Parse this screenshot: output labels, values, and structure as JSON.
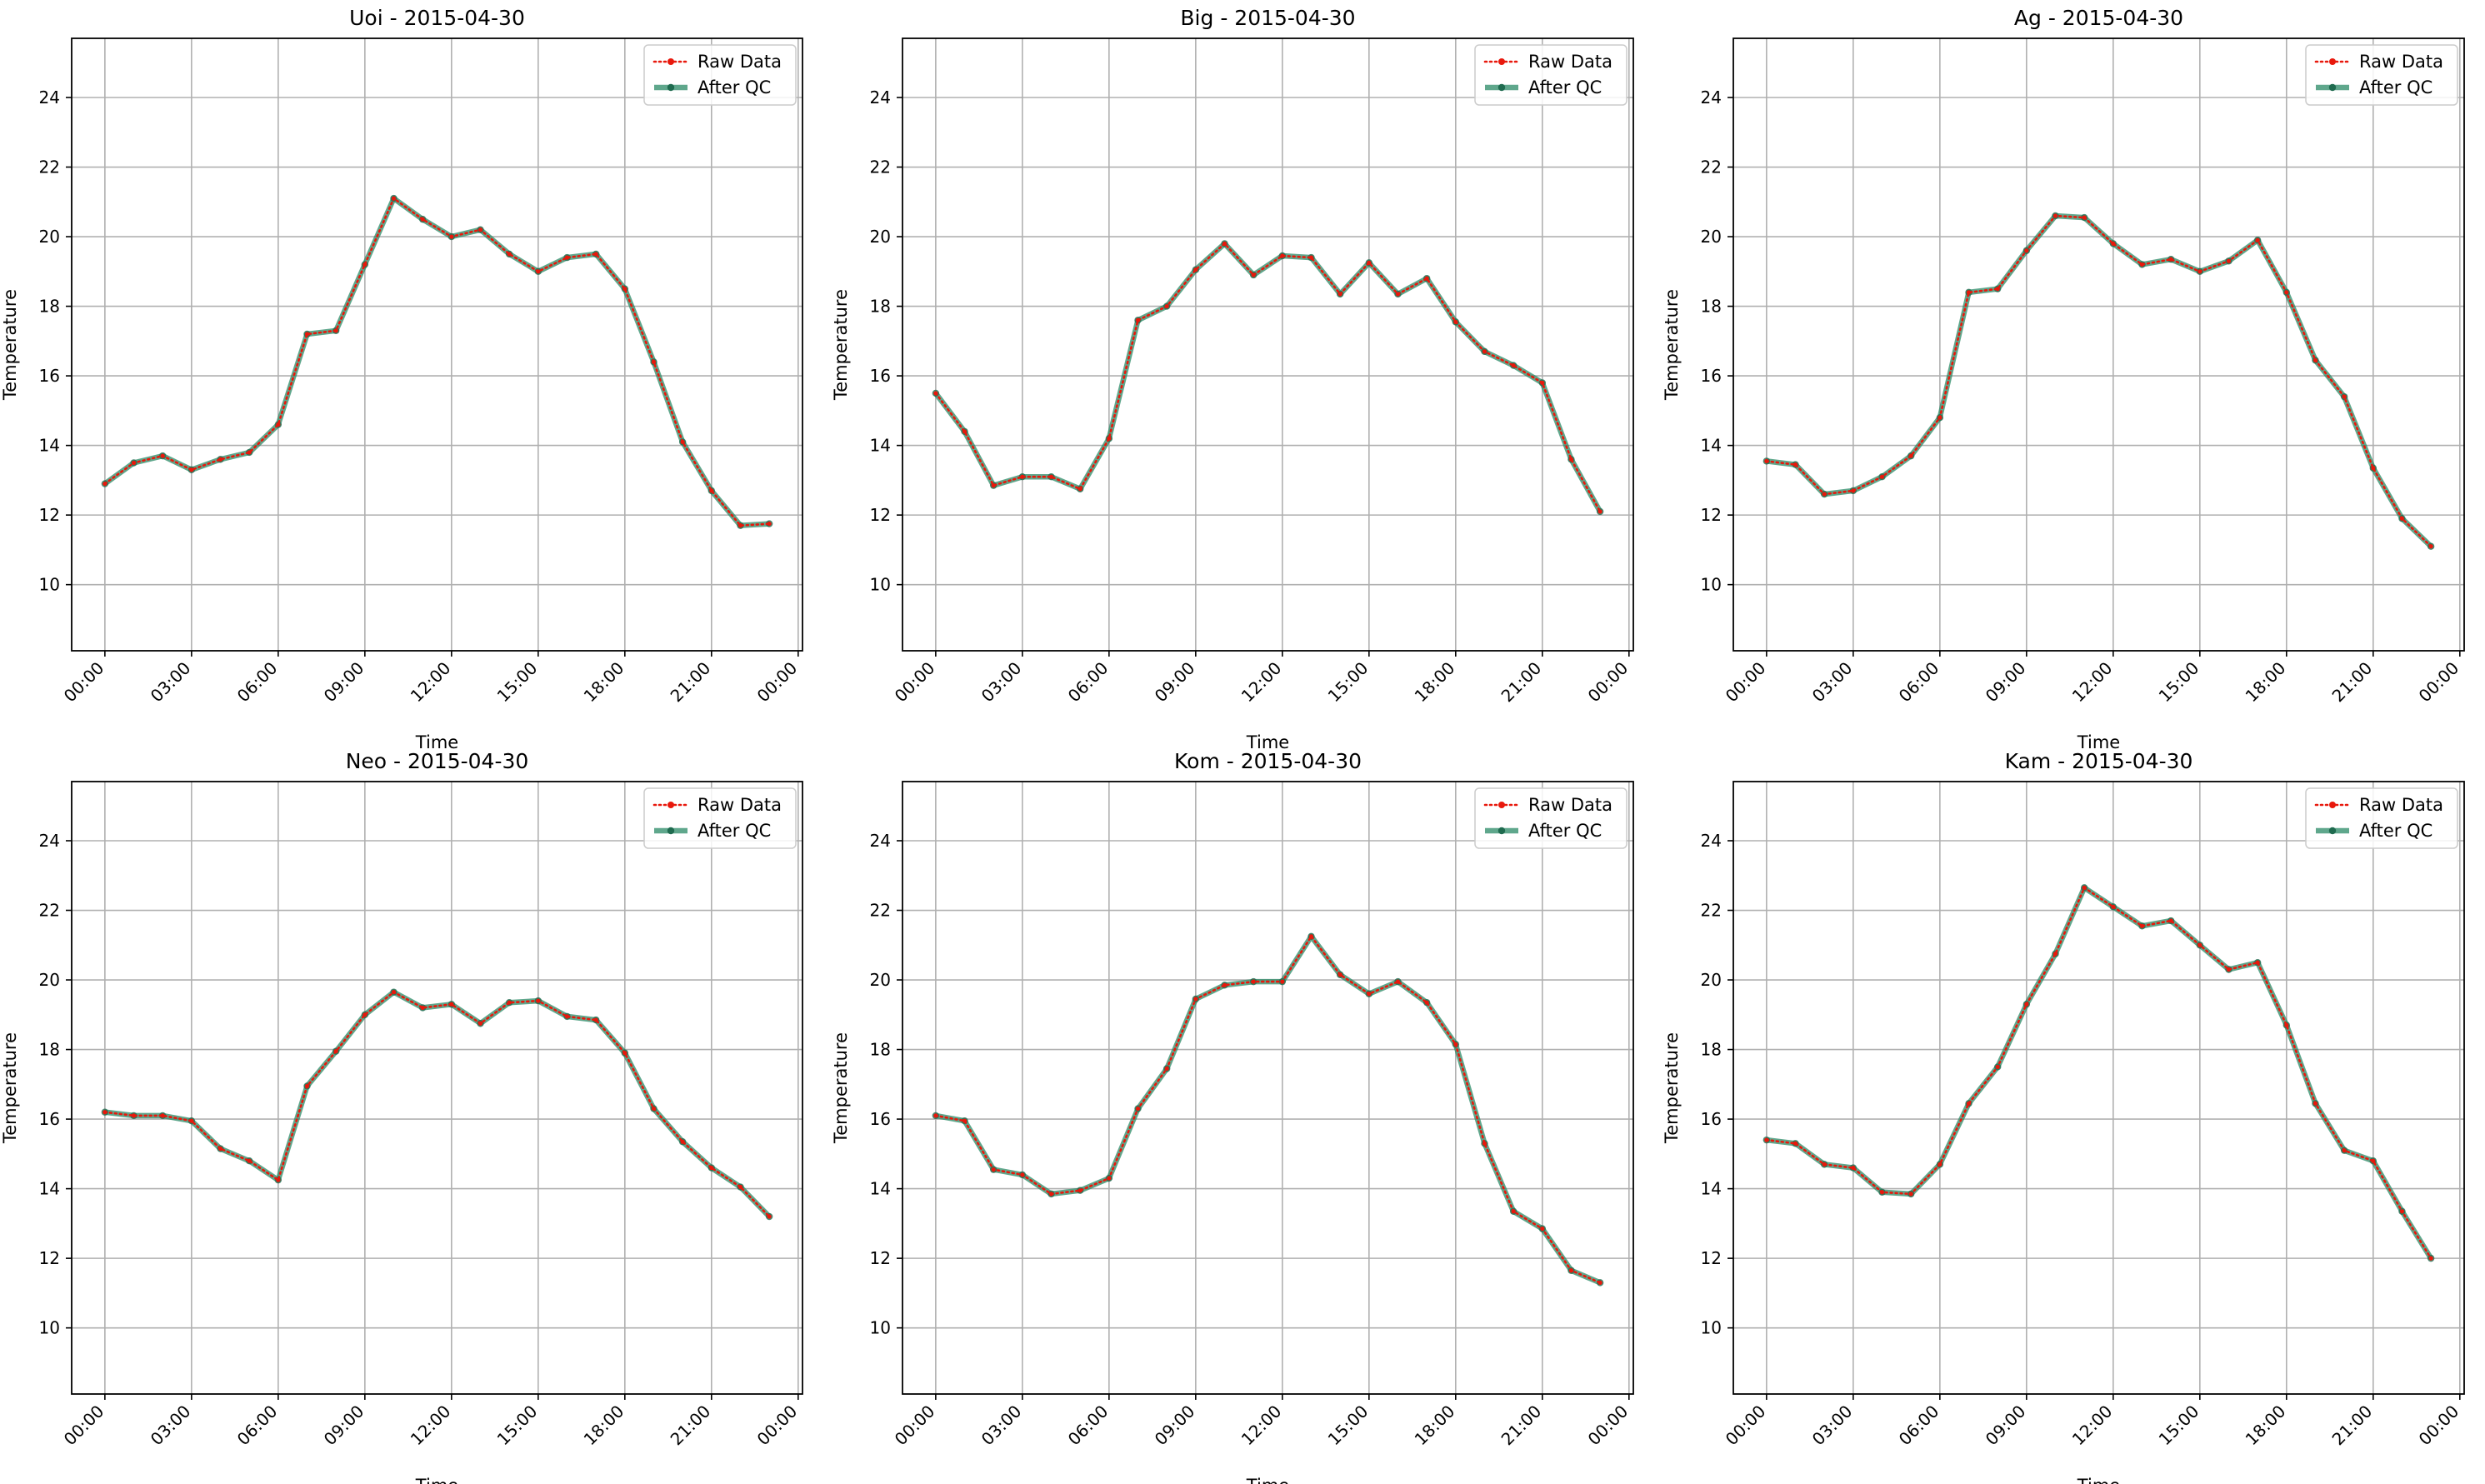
{
  "chart_data": [
    {
      "type": "line",
      "title": "Uoi - 2015-04-30",
      "xlabel": "Time",
      "ylabel": "Temperature",
      "x": [
        "00:00",
        "01:00",
        "02:00",
        "03:00",
        "04:00",
        "05:00",
        "06:00",
        "07:00",
        "08:00",
        "09:00",
        "10:00",
        "11:00",
        "12:00",
        "13:00",
        "14:00",
        "15:00",
        "16:00",
        "17:00",
        "18:00",
        "19:00",
        "20:00",
        "21:00",
        "22:00",
        "23:00"
      ],
      "xticks": [
        "00:00",
        "03:00",
        "06:00",
        "09:00",
        "12:00",
        "15:00",
        "18:00",
        "21:00",
        "00:00"
      ],
      "xlim_hours": [
        -1.15,
        24.15
      ],
      "yticks": [
        10,
        12,
        14,
        16,
        18,
        20,
        22,
        24
      ],
      "ylim": [
        8.1,
        25.7
      ],
      "grid": true,
      "legend": "top-right",
      "series": [
        {
          "name": "Raw Data",
          "color": "#e8180c",
          "style": "dotted",
          "values": [
            12.9,
            13.5,
            13.7,
            13.3,
            13.6,
            13.8,
            14.6,
            17.2,
            17.3,
            19.2,
            21.1,
            20.5,
            20.0,
            20.2,
            19.5,
            19.0,
            19.4,
            19.5,
            18.5,
            16.4,
            14.1,
            12.7,
            11.7,
            11.75
          ]
        },
        {
          "name": "After QC",
          "color": "#2a8a66",
          "style": "solid",
          "values": [
            12.9,
            13.5,
            13.7,
            13.3,
            13.6,
            13.8,
            14.6,
            17.2,
            17.3,
            19.2,
            21.1,
            20.5,
            20.0,
            20.2,
            19.5,
            19.0,
            19.4,
            19.5,
            18.5,
            16.4,
            14.1,
            12.7,
            11.7,
            11.75
          ]
        }
      ]
    },
    {
      "type": "line",
      "title": "Big - 2015-04-30",
      "xlabel": "Time",
      "ylabel": "Temperature",
      "x": [
        "00:00",
        "01:00",
        "02:00",
        "03:00",
        "04:00",
        "05:00",
        "06:00",
        "07:00",
        "08:00",
        "09:00",
        "10:00",
        "11:00",
        "12:00",
        "13:00",
        "14:00",
        "15:00",
        "16:00",
        "17:00",
        "18:00",
        "19:00",
        "20:00",
        "21:00",
        "22:00",
        "23:00"
      ],
      "xticks": [
        "00:00",
        "03:00",
        "06:00",
        "09:00",
        "12:00",
        "15:00",
        "18:00",
        "21:00",
        "00:00"
      ],
      "xlim_hours": [
        -1.15,
        24.15
      ],
      "yticks": [
        10,
        12,
        14,
        16,
        18,
        20,
        22,
        24
      ],
      "ylim": [
        8.1,
        25.7
      ],
      "grid": true,
      "legend": "top-right",
      "series": [
        {
          "name": "Raw Data",
          "color": "#e8180c",
          "style": "dotted",
          "values": [
            15.5,
            14.4,
            12.85,
            13.1,
            13.1,
            12.75,
            14.2,
            17.6,
            18.0,
            19.05,
            19.8,
            18.9,
            19.45,
            19.4,
            18.35,
            19.25,
            18.35,
            18.8,
            17.55,
            16.7,
            16.3,
            15.8,
            13.6,
            12.1
          ]
        },
        {
          "name": "After QC",
          "color": "#2a8a66",
          "style": "solid",
          "values": [
            15.5,
            14.4,
            12.85,
            13.1,
            13.1,
            12.75,
            14.2,
            17.6,
            18.0,
            19.05,
            19.8,
            18.9,
            19.45,
            19.4,
            18.35,
            19.25,
            18.35,
            18.8,
            17.55,
            16.7,
            16.3,
            15.8,
            13.6,
            12.1
          ]
        }
      ]
    },
    {
      "type": "line",
      "title": "Ag - 2015-04-30",
      "xlabel": "Time",
      "ylabel": "Temperature",
      "x": [
        "00:00",
        "01:00",
        "02:00",
        "03:00",
        "04:00",
        "05:00",
        "06:00",
        "07:00",
        "08:00",
        "09:00",
        "10:00",
        "11:00",
        "12:00",
        "13:00",
        "14:00",
        "15:00",
        "16:00",
        "17:00",
        "18:00",
        "19:00",
        "20:00",
        "21:00",
        "22:00",
        "23:00"
      ],
      "xticks": [
        "00:00",
        "03:00",
        "06:00",
        "09:00",
        "12:00",
        "15:00",
        "18:00",
        "21:00",
        "00:00"
      ],
      "xlim_hours": [
        -1.15,
        24.15
      ],
      "yticks": [
        10,
        12,
        14,
        16,
        18,
        20,
        22,
        24
      ],
      "ylim": [
        8.1,
        25.7
      ],
      "grid": true,
      "legend": "top-right",
      "series": [
        {
          "name": "Raw Data",
          "color": "#e8180c",
          "style": "dotted",
          "values": [
            13.55,
            13.45,
            12.6,
            12.7,
            13.1,
            13.7,
            14.8,
            18.4,
            18.5,
            19.6,
            20.6,
            20.55,
            19.8,
            19.2,
            19.35,
            19.0,
            19.3,
            19.9,
            18.4,
            16.45,
            15.4,
            13.35,
            11.9,
            11.1
          ]
        },
        {
          "name": "After QC",
          "color": "#2a8a66",
          "style": "solid",
          "values": [
            13.55,
            13.45,
            12.6,
            12.7,
            13.1,
            13.7,
            14.8,
            18.4,
            18.5,
            19.6,
            20.6,
            20.55,
            19.8,
            19.2,
            19.35,
            19.0,
            19.3,
            19.9,
            18.4,
            16.45,
            15.4,
            13.35,
            11.9,
            11.1
          ]
        }
      ]
    },
    {
      "type": "line",
      "title": "Neo - 2015-04-30",
      "xlabel": "Time",
      "ylabel": "Temperature",
      "x": [
        "00:00",
        "01:00",
        "02:00",
        "03:00",
        "04:00",
        "05:00",
        "06:00",
        "07:00",
        "08:00",
        "09:00",
        "10:00",
        "11:00",
        "12:00",
        "13:00",
        "14:00",
        "15:00",
        "16:00",
        "17:00",
        "18:00",
        "19:00",
        "20:00",
        "21:00",
        "22:00",
        "23:00"
      ],
      "xticks": [
        "00:00",
        "03:00",
        "06:00",
        "09:00",
        "12:00",
        "15:00",
        "18:00",
        "21:00",
        "00:00"
      ],
      "xlim_hours": [
        -1.15,
        24.15
      ],
      "yticks": [
        10,
        12,
        14,
        16,
        18,
        20,
        22,
        24
      ],
      "ylim": [
        8.1,
        25.7
      ],
      "grid": true,
      "legend": "top-right",
      "series": [
        {
          "name": "Raw Data",
          "color": "#e8180c",
          "style": "dotted",
          "values": [
            16.2,
            16.1,
            16.1,
            15.95,
            15.15,
            14.8,
            14.25,
            16.95,
            17.95,
            19.0,
            19.65,
            19.2,
            19.3,
            18.75,
            19.35,
            19.4,
            18.95,
            18.85,
            17.9,
            16.3,
            15.35,
            14.6,
            14.05,
            13.2
          ]
        },
        {
          "name": "After QC",
          "color": "#2a8a66",
          "style": "solid",
          "values": [
            16.2,
            16.1,
            16.1,
            15.95,
            15.15,
            14.8,
            14.25,
            16.95,
            17.95,
            19.0,
            19.65,
            19.2,
            19.3,
            18.75,
            19.35,
            19.4,
            18.95,
            18.85,
            17.9,
            16.3,
            15.35,
            14.6,
            14.05,
            13.2
          ]
        }
      ]
    },
    {
      "type": "line",
      "title": "Kom - 2015-04-30",
      "xlabel": "Time",
      "ylabel": "Temperature",
      "x": [
        "00:00",
        "01:00",
        "02:00",
        "03:00",
        "04:00",
        "05:00",
        "06:00",
        "07:00",
        "08:00",
        "09:00",
        "10:00",
        "11:00",
        "12:00",
        "13:00",
        "14:00",
        "15:00",
        "16:00",
        "17:00",
        "18:00",
        "19:00",
        "20:00",
        "21:00",
        "22:00",
        "23:00"
      ],
      "xticks": [
        "00:00",
        "03:00",
        "06:00",
        "09:00",
        "12:00",
        "15:00",
        "18:00",
        "21:00",
        "00:00"
      ],
      "xlim_hours": [
        -1.15,
        24.15
      ],
      "yticks": [
        10,
        12,
        14,
        16,
        18,
        20,
        22,
        24
      ],
      "ylim": [
        8.1,
        25.7
      ],
      "grid": true,
      "legend": "top-right",
      "series": [
        {
          "name": "Raw Data",
          "color": "#e8180c",
          "style": "dotted",
          "values": [
            16.1,
            15.95,
            14.55,
            14.4,
            13.85,
            13.95,
            14.3,
            16.3,
            17.45,
            19.45,
            19.85,
            19.95,
            19.95,
            21.25,
            20.15,
            19.6,
            19.95,
            19.35,
            18.15,
            15.3,
            13.35,
            12.85,
            11.65,
            11.3
          ]
        },
        {
          "name": "After QC",
          "color": "#2a8a66",
          "style": "solid",
          "values": [
            16.1,
            15.95,
            14.55,
            14.4,
            13.85,
            13.95,
            14.3,
            16.3,
            17.45,
            19.45,
            19.85,
            19.95,
            19.95,
            21.25,
            20.15,
            19.6,
            19.95,
            19.35,
            18.15,
            15.3,
            13.35,
            12.85,
            11.65,
            11.3
          ]
        }
      ]
    },
    {
      "type": "line",
      "title": "Kam - 2015-04-30",
      "xlabel": "Time",
      "ylabel": "Temperature",
      "x": [
        "00:00",
        "01:00",
        "02:00",
        "03:00",
        "04:00",
        "05:00",
        "06:00",
        "07:00",
        "08:00",
        "09:00",
        "10:00",
        "11:00",
        "12:00",
        "13:00",
        "14:00",
        "15:00",
        "16:00",
        "17:00",
        "18:00",
        "19:00",
        "20:00",
        "21:00",
        "22:00",
        "23:00"
      ],
      "xticks": [
        "00:00",
        "03:00",
        "06:00",
        "09:00",
        "12:00",
        "15:00",
        "18:00",
        "21:00",
        "00:00"
      ],
      "xlim_hours": [
        -1.15,
        24.15
      ],
      "yticks": [
        10,
        12,
        14,
        16,
        18,
        20,
        22,
        24
      ],
      "ylim": [
        8.1,
        25.7
      ],
      "grid": true,
      "legend": "top-right",
      "series": [
        {
          "name": "Raw Data",
          "color": "#e8180c",
          "style": "dotted",
          "values": [
            15.4,
            15.3,
            14.7,
            14.6,
            13.9,
            13.85,
            14.7,
            16.45,
            17.5,
            19.3,
            20.75,
            22.65,
            22.1,
            21.55,
            21.7,
            21.0,
            20.3,
            20.5,
            18.7,
            16.45,
            15.1,
            14.8,
            13.35,
            12.0
          ]
        },
        {
          "name": "After QC",
          "color": "#2a8a66",
          "style": "solid",
          "values": [
            15.4,
            15.3,
            14.7,
            14.6,
            13.9,
            13.85,
            14.7,
            16.45,
            17.5,
            19.3,
            20.75,
            22.65,
            22.1,
            21.55,
            21.7,
            21.0,
            20.3,
            20.5,
            18.7,
            16.45,
            15.1,
            14.8,
            13.35,
            12.0
          ]
        }
      ]
    }
  ]
}
